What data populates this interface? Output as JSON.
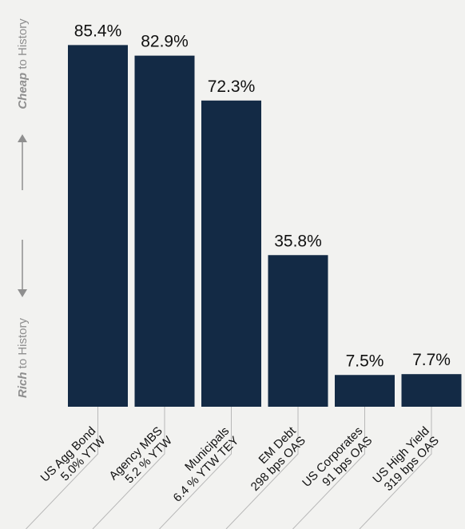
{
  "y_axis": {
    "cheap_bold": "Cheap",
    "cheap_rest": " to History",
    "rich_bold": "Rich",
    "rich_rest": " to History"
  },
  "colors": {
    "bar": "#132a45",
    "text": "#111111",
    "axis_label": "#8f8f8f",
    "leader": "#b8b8b8",
    "background": "#f2f2f0"
  },
  "chart_data": {
    "type": "bar",
    "title": "",
    "xlabel": "",
    "ylabel": "",
    "ylim": [
      0,
      100
    ],
    "categories": [
      [
        "US Agg Bond",
        "5.0% YTW"
      ],
      [
        "Agency MBS",
        "5.2 % YTW"
      ],
      [
        "Municipals",
        "6.4 % YTW TEY"
      ],
      [
        "EM Debt",
        "298 bps OAS"
      ],
      [
        "US Corporates",
        "91 bps OAS"
      ],
      [
        "US High Yield",
        "319 bps OAS"
      ]
    ],
    "values": [
      85.4,
      82.9,
      72.3,
      35.8,
      7.5,
      7.7
    ],
    "value_labels": [
      "85.4%",
      "82.9%",
      "72.3%",
      "35.8%",
      "7.5%",
      "7.7%"
    ]
  }
}
